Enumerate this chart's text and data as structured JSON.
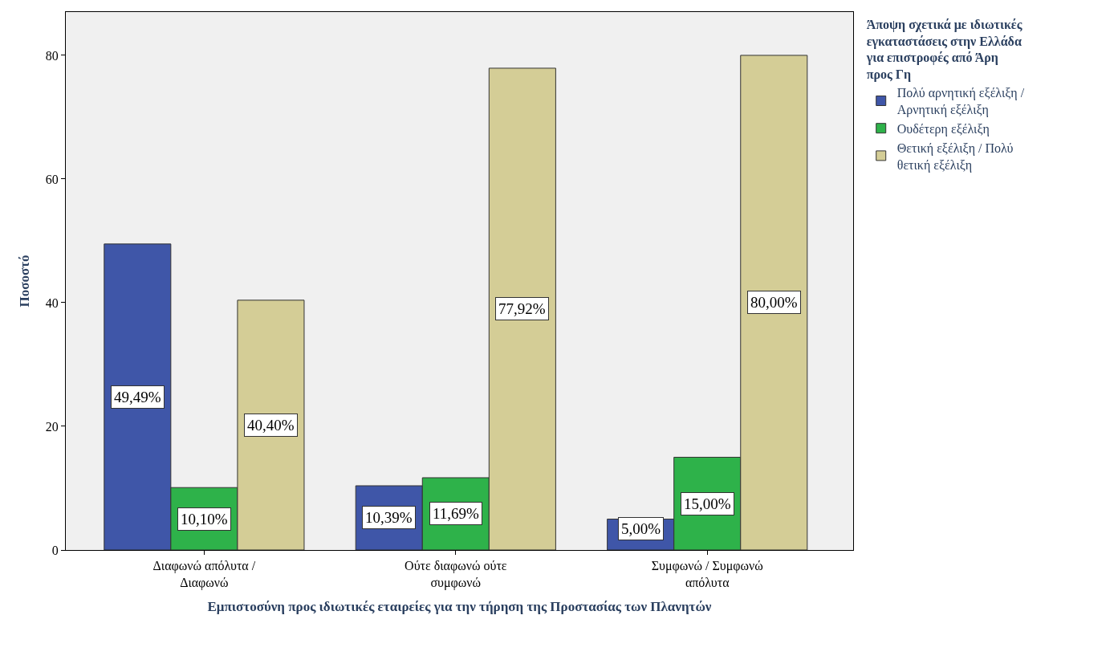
{
  "chart_data": {
    "type": "bar",
    "xlabel": "Εμπιστοσύνη προς ιδιωτικές εταιρείες για την τήρηση της Προστασίας των Πλανητών",
    "ylabel": "Ποσοστό",
    "legend_title": "Άποψη σχετικά με ιδιωτικές εγκαταστάσεις στην Ελλάδα για επιστροφές από Άρη προς Γη",
    "categories": [
      "Διαφωνώ απόλυτα / Διαφωνώ",
      "Ούτε διαφωνώ ούτε συμφωνώ",
      "Συμφωνώ / Συμφωνώ απόλυτα"
    ],
    "series": [
      {
        "name": "Πολύ αρνητική εξέλιξη / Αρνητική εξέλιξη",
        "color": "#3f56a8",
        "values": [
          49.49,
          10.39,
          5.0
        ],
        "value_labels": [
          "49,49%",
          "10,39%",
          "5,00%"
        ]
      },
      {
        "name": "Ουδέτερη εξέλιξη",
        "color": "#2eb24a",
        "values": [
          10.1,
          11.69,
          15.0
        ],
        "value_labels": [
          "10,10%",
          "11,69%",
          "15,00%"
        ]
      },
      {
        "name": "Θετική εξέλιξη / Πολύ θετική εξέλιξη",
        "color": "#d4cd96",
        "values": [
          40.4,
          77.92,
          80.0
        ],
        "value_labels": [
          "40,40%",
          "77,92%",
          "80,00%"
        ]
      }
    ],
    "ylim": [
      0,
      87
    ],
    "yticks": [
      0,
      20,
      40,
      60,
      80
    ],
    "grid": false,
    "legend": "top right"
  }
}
